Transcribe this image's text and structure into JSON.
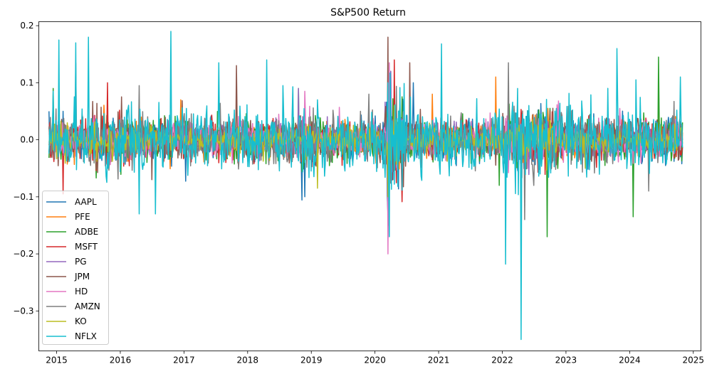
{
  "chart_data": {
    "type": "line",
    "title": "S&P500 Return",
    "xlabel": "",
    "ylabel": "",
    "xlim": [
      2014.72,
      2025.12
    ],
    "ylim": [
      -0.37,
      0.207
    ],
    "x_ticks": [
      {
        "value": 2015,
        "label": "2015"
      },
      {
        "value": 2016,
        "label": "2016"
      },
      {
        "value": 2017,
        "label": "2017"
      },
      {
        "value": 2018,
        "label": "2018"
      },
      {
        "value": 2019,
        "label": "2019"
      },
      {
        "value": 2020,
        "label": "2020"
      },
      {
        "value": 2021,
        "label": "2021"
      },
      {
        "value": 2022,
        "label": "2022"
      },
      {
        "value": 2023,
        "label": "2023"
      },
      {
        "value": 2024,
        "label": "2024"
      },
      {
        "value": 2025,
        "label": "2025"
      }
    ],
    "y_ticks": [
      {
        "value": 0.2,
        "label": "0.2"
      },
      {
        "value": 0.1,
        "label": "0.1"
      },
      {
        "value": 0.0,
        "label": "0.0"
      },
      {
        "value": -0.1,
        "label": "−0.1"
      },
      {
        "value": -0.2,
        "label": "−0.2"
      },
      {
        "value": -0.3,
        "label": "−0.3"
      }
    ],
    "x_range": [
      2014.88,
      2024.83
    ],
    "grid": false,
    "legend_position": "lower-left",
    "series": [
      {
        "name": "AAPL",
        "color": "#1f77b4",
        "volatility": 0.018,
        "spikes": [
          [
            2015.1,
            0.05
          ],
          [
            2020.2,
            -0.13
          ],
          [
            2020.25,
            0.12
          ],
          [
            2018.9,
            -0.1
          ],
          [
            2020.6,
            0.1
          ]
        ]
      },
      {
        "name": "PFE",
        "color": "#ff7f0e",
        "volatility": 0.014,
        "spikes": [
          [
            2016.95,
            0.07
          ],
          [
            2021.9,
            0.11
          ],
          [
            2020.9,
            0.08
          ],
          [
            2024.45,
            0.06
          ]
        ]
      },
      {
        "name": "ADBE",
        "color": "#2ca02c",
        "volatility": 0.019,
        "spikes": [
          [
            2014.95,
            0.09
          ],
          [
            2024.45,
            0.145
          ],
          [
            2024.05,
            -0.135
          ],
          [
            2022.7,
            -0.17
          ],
          [
            2021.95,
            -0.08
          ],
          [
            2018.8,
            0.09
          ]
        ]
      },
      {
        "name": "MSFT",
        "color": "#d62728",
        "volatility": 0.016,
        "spikes": [
          [
            2015.1,
            -0.095
          ],
          [
            2015.8,
            0.1
          ],
          [
            2020.2,
            -0.15
          ],
          [
            2020.3,
            0.14
          ]
        ]
      },
      {
        "name": "PG",
        "color": "#9467bd",
        "volatility": 0.012,
        "spikes": [
          [
            2018.8,
            0.09
          ],
          [
            2020.2,
            -0.09
          ],
          [
            2020.25,
            0.12
          ]
        ]
      },
      {
        "name": "JPM",
        "color": "#8c564b",
        "volatility": 0.017,
        "spikes": [
          [
            2020.2,
            0.18
          ],
          [
            2020.22,
            -0.15
          ],
          [
            2020.55,
            0.135
          ],
          [
            2017.82,
            0.13
          ],
          [
            2016.5,
            -0.07
          ]
        ]
      },
      {
        "name": "HD",
        "color": "#e377c2",
        "volatility": 0.015,
        "spikes": [
          [
            2020.2,
            -0.2
          ],
          [
            2020.23,
            0.135
          ],
          [
            2018.9,
            0.085
          ],
          [
            2023.85,
            0.055
          ]
        ]
      },
      {
        "name": "AMZN",
        "color": "#7f7f7f",
        "volatility": 0.02,
        "spikes": [
          [
            2015.3,
            0.135
          ],
          [
            2016.3,
            0.095
          ],
          [
            2022.1,
            0.135
          ],
          [
            2022.35,
            -0.14
          ],
          [
            2022.5,
            -0.08
          ],
          [
            2019.9,
            0.08
          ],
          [
            2024.3,
            -0.09
          ]
        ]
      },
      {
        "name": "KO",
        "color": "#bcbd22",
        "volatility": 0.011,
        "spikes": [
          [
            2020.2,
            -0.1
          ],
          [
            2020.3,
            0.06
          ],
          [
            2019.1,
            -0.085
          ],
          [
            2023.3,
            -0.05
          ]
        ]
      },
      {
        "name": "NFLX",
        "color": "#17becf",
        "volatility": 0.028,
        "spikes": [
          [
            2014.95,
            0.085
          ],
          [
            2015.03,
            0.175
          ],
          [
            2015.3,
            0.17
          ],
          [
            2015.5,
            0.18
          ],
          [
            2016.3,
            -0.13
          ],
          [
            2016.55,
            -0.13
          ],
          [
            2016.8,
            0.19
          ],
          [
            2017.55,
            0.135
          ],
          [
            2018.3,
            0.14
          ],
          [
            2018.55,
            0.095
          ],
          [
            2019.1,
            0.07
          ],
          [
            2020.2,
            0.1
          ],
          [
            2020.23,
            -0.17
          ],
          [
            2021.05,
            0.168
          ],
          [
            2022.05,
            -0.218
          ],
          [
            2022.3,
            -0.35
          ],
          [
            2023.8,
            0.16
          ],
          [
            2024.1,
            0.105
          ],
          [
            2024.8,
            0.11
          ]
        ]
      }
    ]
  }
}
